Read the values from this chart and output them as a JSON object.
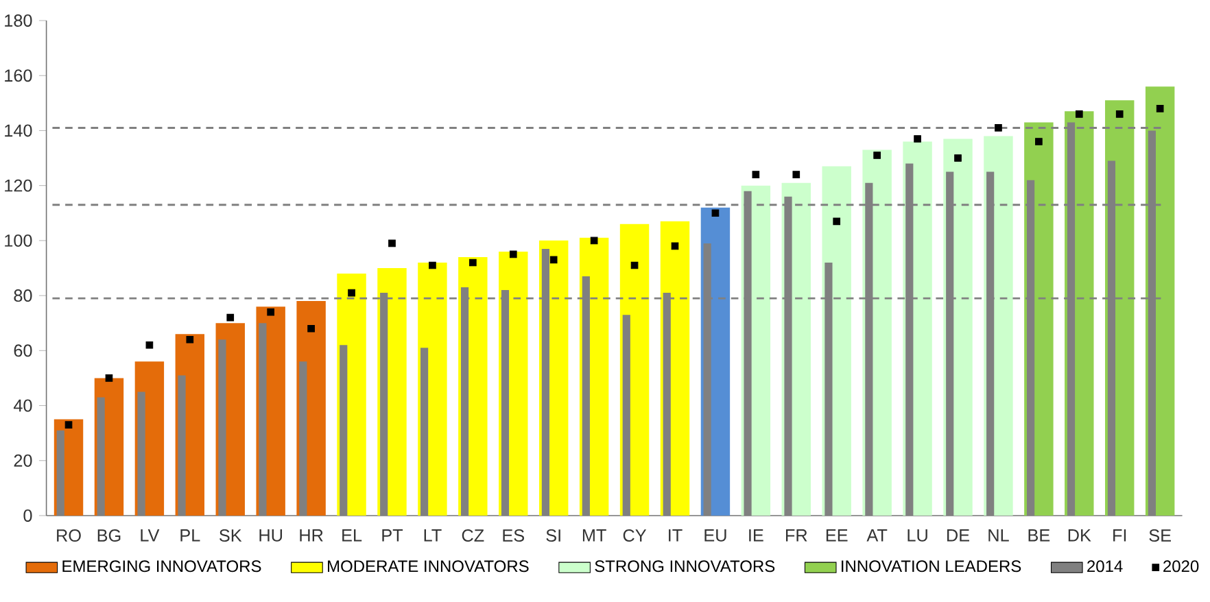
{
  "chart_data": {
    "type": "bar",
    "categories": [
      "RO",
      "BG",
      "LV",
      "PL",
      "SK",
      "HU",
      "HR",
      "EL",
      "PT",
      "LT",
      "CZ",
      "ES",
      "SI",
      "MT",
      "CY",
      "IT",
      "EU",
      "IE",
      "FR",
      "EE",
      "AT",
      "LU",
      "DE",
      "NL",
      "BE",
      "DK",
      "FI",
      "SE"
    ],
    "series": [
      {
        "name": "EMERGING INNOVATORS",
        "color": "#e46c0a",
        "values": [
          35,
          50,
          56,
          66,
          70,
          76,
          78,
          null,
          null,
          null,
          null,
          null,
          null,
          null,
          null,
          null,
          null,
          null,
          null,
          null,
          null,
          null,
          null,
          null,
          null,
          null,
          null,
          null
        ]
      },
      {
        "name": "MODERATE INNOVATORS",
        "color": "#ffff00",
        "values": [
          null,
          null,
          null,
          null,
          null,
          null,
          null,
          88,
          90,
          92,
          94,
          96,
          100,
          101,
          106,
          107,
          null,
          null,
          null,
          null,
          null,
          null,
          null,
          null,
          null,
          null,
          null,
          null
        ]
      },
      {
        "name": "STRONG INNOVATORS",
        "color": "#ccffcc",
        "values": [
          null,
          null,
          null,
          null,
          null,
          null,
          null,
          null,
          null,
          null,
          null,
          null,
          null,
          null,
          null,
          null,
          null,
          120,
          121,
          127,
          133,
          136,
          137,
          138,
          null,
          null,
          null,
          null
        ]
      },
      {
        "name": "INNOVATION LEADERS",
        "color": "#92d050",
        "values": [
          null,
          null,
          null,
          null,
          null,
          null,
          null,
          null,
          null,
          null,
          null,
          null,
          null,
          null,
          null,
          null,
          null,
          null,
          null,
          null,
          null,
          null,
          null,
          null,
          143,
          147,
          151,
          156
        ]
      },
      {
        "color": "#558ed5",
        "values": [
          null,
          null,
          null,
          null,
          null,
          null,
          null,
          null,
          null,
          null,
          null,
          null,
          null,
          null,
          null,
          null,
          112,
          null,
          null,
          null,
          null,
          null,
          null,
          null,
          null,
          null,
          null,
          null
        ]
      },
      {
        "name": "2014",
        "color": "#808080",
        "values": [
          31,
          43,
          45,
          51,
          64,
          70,
          56,
          62,
          81,
          61,
          83,
          82,
          97,
          87,
          73,
          81,
          99,
          118,
          116,
          92,
          121,
          128,
          125,
          125,
          122,
          143,
          129,
          140
        ]
      },
      {
        "name": "2020",
        "type": "scatter",
        "marker": "square",
        "color": "#000000",
        "values": [
          33,
          50,
          62,
          64,
          72,
          74,
          68,
          81,
          99,
          91,
          92,
          95,
          93,
          100,
          91,
          98,
          110,
          124,
          124,
          107,
          131,
          137,
          130,
          141,
          136,
          146,
          146,
          148
        ]
      }
    ],
    "ylim": [
      0,
      180
    ],
    "yticks": [
      0,
      20,
      40,
      60,
      80,
      100,
      120,
      140,
      160,
      180
    ],
    "ref_lines": [
      {
        "axis": "y",
        "value": 79,
        "color": "#808080",
        "line_style": "dashed"
      },
      {
        "axis": "y",
        "value": 113,
        "color": "#808080",
        "line_style": "dashed"
      },
      {
        "axis": "y",
        "value": 141,
        "color": "#808080",
        "line_style": "dashed"
      }
    ],
    "legend": "bottom"
  }
}
